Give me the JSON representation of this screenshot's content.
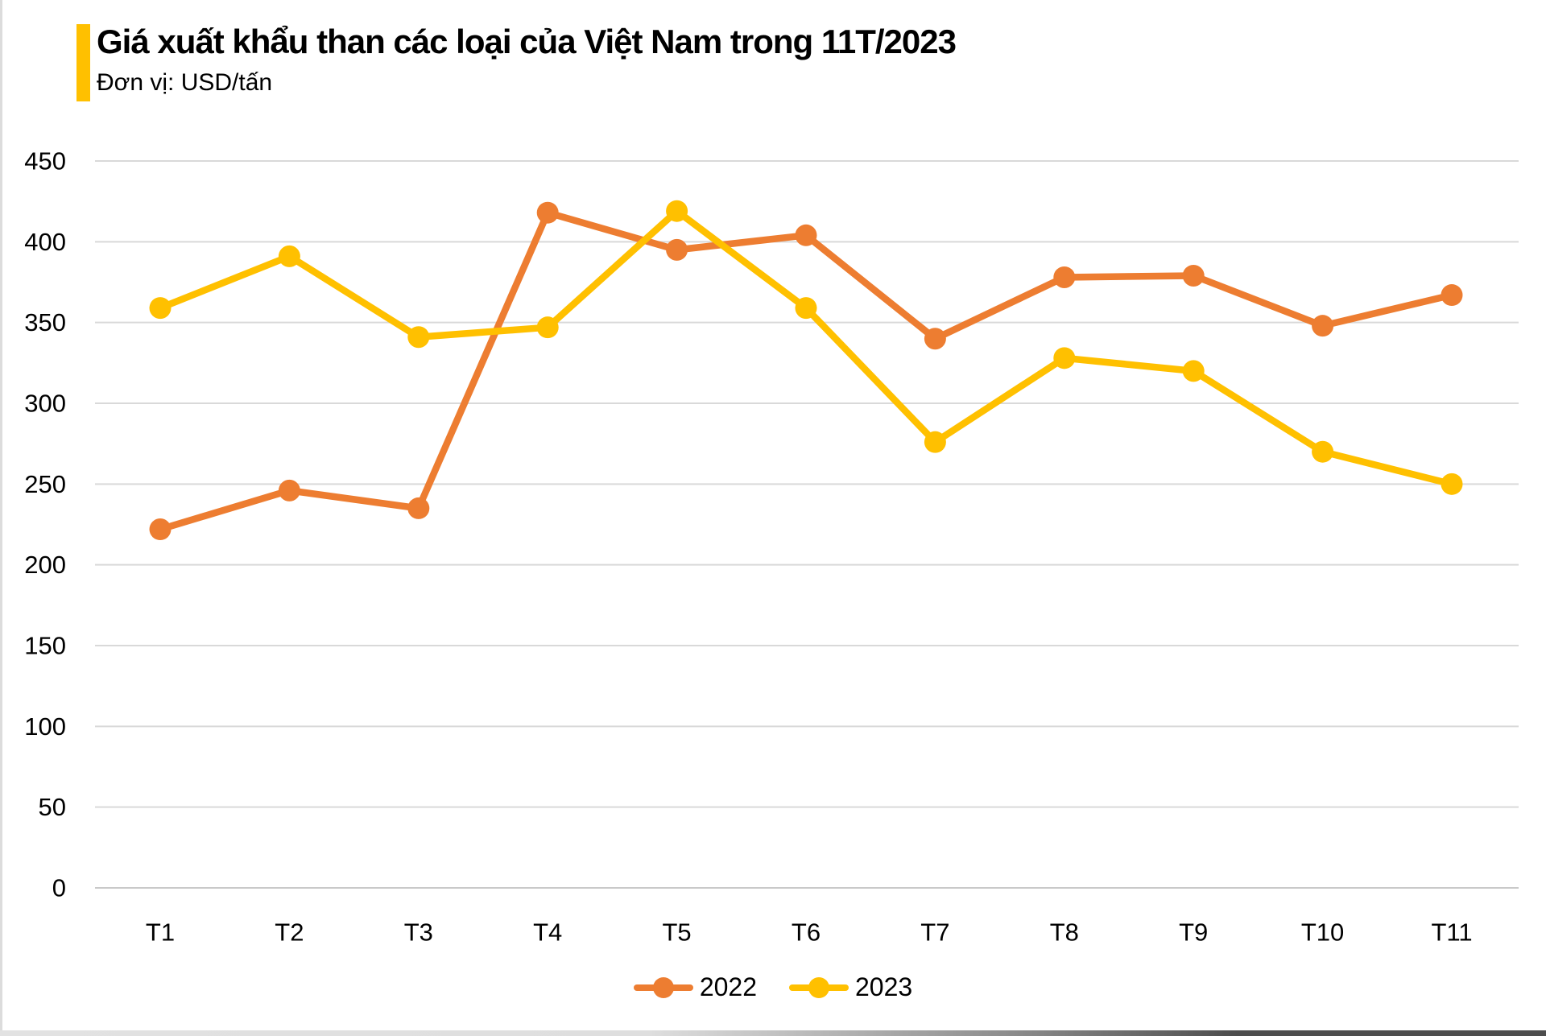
{
  "header": {
    "title": "Giá xuất khẩu than các loại của Việt Nam trong 11T/2023",
    "subtitle": "Đơn vị: USD/tấn",
    "accent_color": "#FFC000"
  },
  "chart_data": {
    "type": "line",
    "title": "Giá xuất khẩu than các loại của Việt Nam trong 11T/2023",
    "unit_label": "Đơn vị: USD/tấn",
    "categories": [
      "T1",
      "T2",
      "T3",
      "T4",
      "T5",
      "T6",
      "T7",
      "T8",
      "T9",
      "T10",
      "T11"
    ],
    "series": [
      {
        "name": "2022",
        "color": "#ED7D31",
        "values": [
          222,
          246,
          235,
          418,
          395,
          404,
          340,
          378,
          379,
          348,
          367
        ]
      },
      {
        "name": "2023",
        "color": "#FFC000",
        "values": [
          359,
          391,
          341,
          347,
          419,
          359,
          276,
          328,
          320,
          270,
          250
        ]
      }
    ],
    "ylim": [
      0,
      450
    ],
    "ytick_step": 50,
    "yticks": [
      0,
      50,
      100,
      150,
      200,
      250,
      300,
      350,
      400,
      450
    ],
    "grid": true,
    "gridline_color": "#D9D9D9",
    "axis_text_color": "#000000",
    "legend_position": "bottom"
  }
}
